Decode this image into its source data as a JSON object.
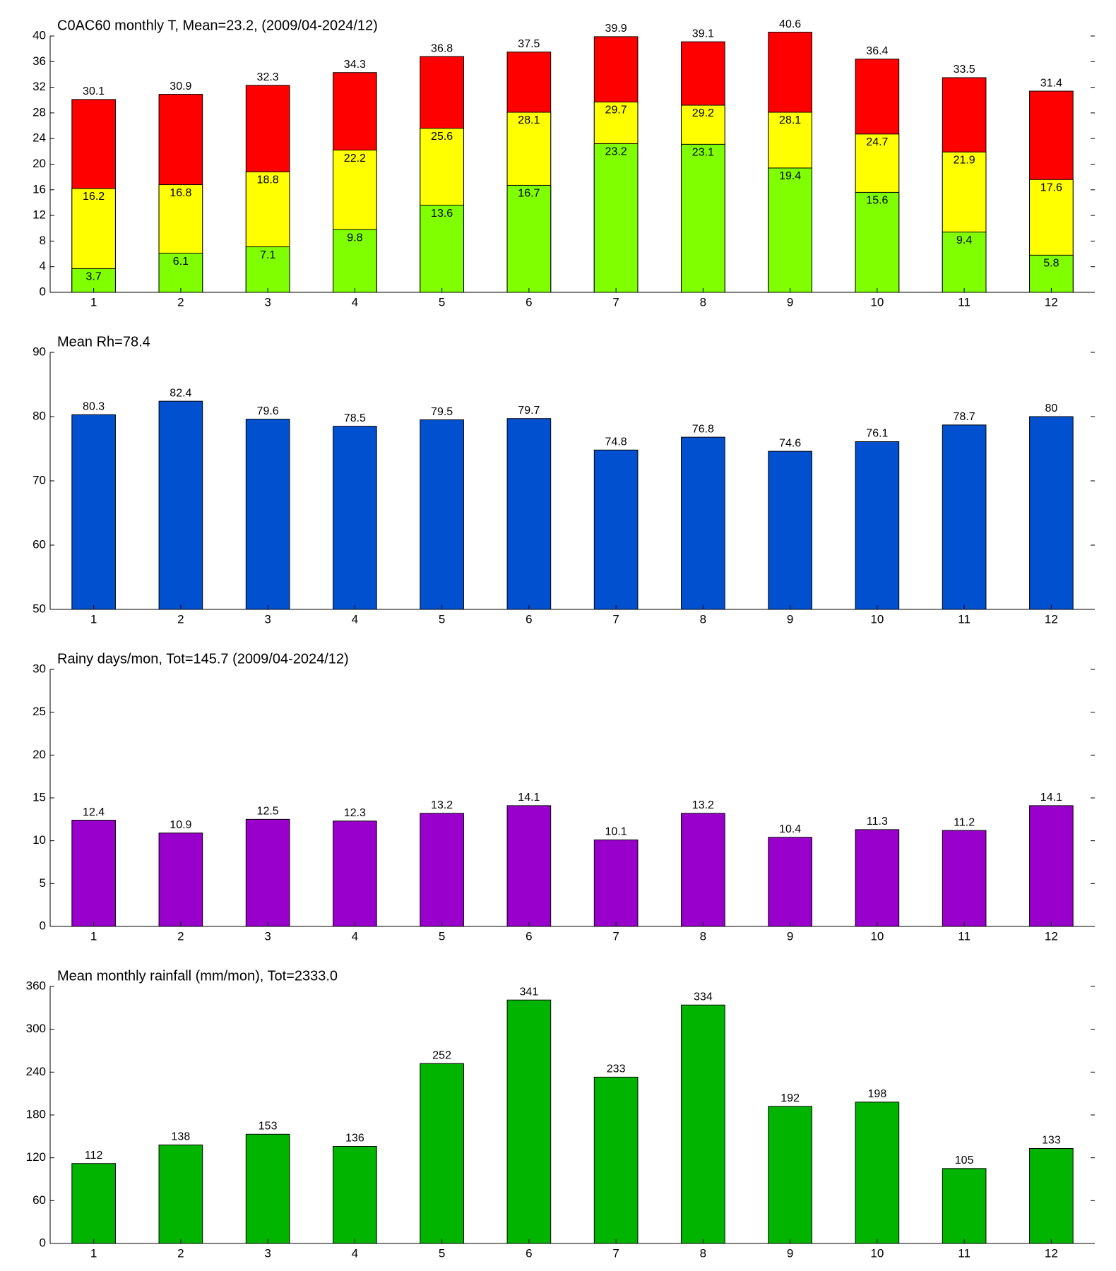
{
  "chart_data": [
    {
      "type": "bar",
      "title": "C0AC60 monthly T, Mean=23.2, (2009/04-2024/12)",
      "categories": [
        1,
        2,
        3,
        4,
        5,
        6,
        7,
        8,
        9,
        10,
        11,
        12
      ],
      "series": [
        {
          "color": "#ff0000",
          "values": [
            30.1,
            30.9,
            32.3,
            34.3,
            36.8,
            37.5,
            39.9,
            39.1,
            40.6,
            36.4,
            33.5,
            31.4
          ]
        },
        {
          "color": "#ffff00",
          "values": [
            16.2,
            16.8,
            18.8,
            22.2,
            25.6,
            28.1,
            29.7,
            29.2,
            28.1,
            24.7,
            21.9,
            17.6
          ]
        },
        {
          "color": "#80ff00",
          "values": [
            3.7,
            6.1,
            7.1,
            9.8,
            13.6,
            16.7,
            23.2,
            23.1,
            19.4,
            15.6,
            9.4,
            5.8
          ]
        }
      ],
      "ylim": [
        0,
        40
      ],
      "yticks": [
        0,
        4,
        8,
        12,
        16,
        20,
        24,
        28,
        32,
        36,
        40
      ]
    },
    {
      "type": "bar",
      "title": "Mean Rh=78.4",
      "categories": [
        1,
        2,
        3,
        4,
        5,
        6,
        7,
        8,
        9,
        10,
        11,
        12
      ],
      "series": [
        {
          "color": "#0050d0",
          "values": [
            80.3,
            82.4,
            79.6,
            78.5,
            79.5,
            79.7,
            74.8,
            76.8,
            74.6,
            76.1,
            78.7,
            80
          ]
        }
      ],
      "ylim": [
        50,
        90
      ],
      "yticks": [
        50,
        60,
        70,
        80,
        90
      ]
    },
    {
      "type": "bar",
      "title": "Rainy days/mon, Tot=145.7 (2009/04-2024/12)",
      "categories": [
        1,
        2,
        3,
        4,
        5,
        6,
        7,
        8,
        9,
        10,
        11,
        12
      ],
      "series": [
        {
          "color": "#9900cc",
          "values": [
            12.4,
            10.9,
            12.5,
            12.3,
            13.2,
            14.1,
            10.1,
            13.2,
            10.4,
            11.3,
            11.2,
            14.1
          ]
        }
      ],
      "ylim": [
        0,
        30
      ],
      "yticks": [
        0,
        5,
        10,
        15,
        20,
        25,
        30
      ]
    },
    {
      "type": "bar",
      "title": "Mean monthly rainfall (mm/mon), Tot=2333.0",
      "categories": [
        1,
        2,
        3,
        4,
        5,
        6,
        7,
        8,
        9,
        10,
        11,
        12
      ],
      "series": [
        {
          "color": "#00b400",
          "values": [
            112,
            138,
            153,
            136,
            252,
            341,
            233,
            334,
            192,
            198,
            105,
            133
          ]
        }
      ],
      "ylim": [
        0,
        360
      ],
      "yticks": [
        0,
        60,
        120,
        180,
        240,
        300,
        360
      ]
    }
  ]
}
